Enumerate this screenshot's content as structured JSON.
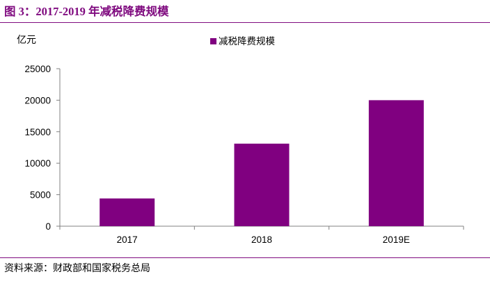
{
  "figure_title": "图 3：2017-2019 年减税降费规模",
  "source_note": "资料来源：财政部和国家税务总局",
  "colors": {
    "bar": "#800080",
    "accent": "#7f0a7f"
  },
  "chart_data": {
    "type": "bar",
    "ylabel": "亿元",
    "categories": [
      "2017",
      "2018",
      "2019E"
    ],
    "series": [
      {
        "name": "减税降费规模",
        "values": [
          4400,
          13100,
          20000
        ]
      }
    ],
    "ylim": [
      0,
      25000
    ],
    "yticks": [
      0,
      5000,
      10000,
      15000,
      20000,
      25000
    ],
    "legend_position": "top-center",
    "grid": false
  }
}
